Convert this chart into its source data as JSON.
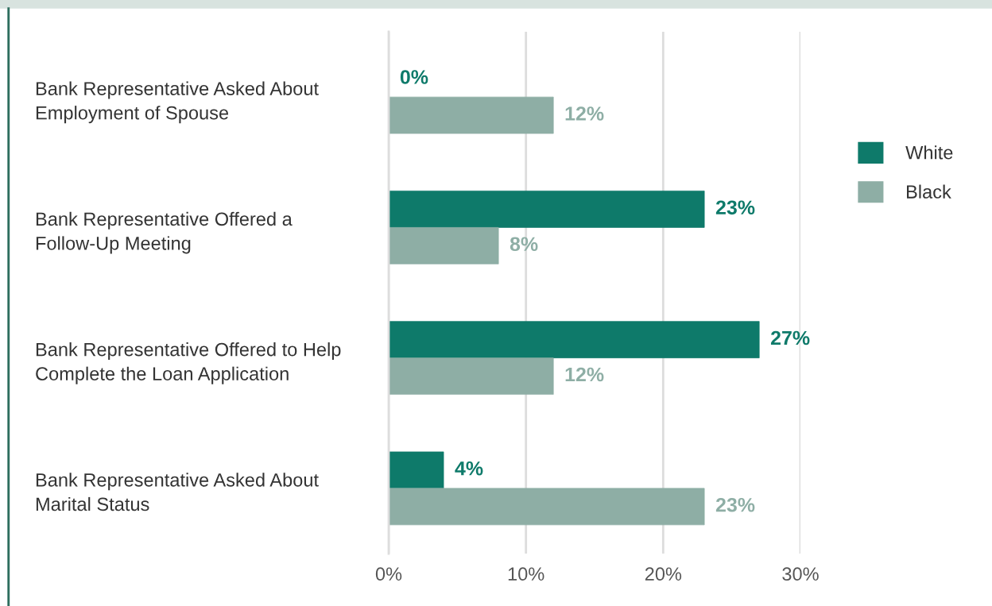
{
  "chart_data": {
    "type": "bar",
    "orientation": "horizontal",
    "categories": [
      "Bank Representative Asked About\nEmployment of Spouse",
      "Bank Representative Offered a\nFollow-Up Meeting",
      "Bank Representative Offered to Help\nComplete the Loan Application",
      "Bank Representative Asked About\nMarital Status"
    ],
    "series": [
      {
        "name": "White",
        "color": "#0e7a6a",
        "values": [
          0,
          23,
          27,
          4
        ],
        "value_labels": [
          "0%",
          "23%",
          "27%",
          "4%"
        ]
      },
      {
        "name": "Black",
        "color": "#8eaea5",
        "values": [
          12,
          8,
          12,
          23
        ],
        "value_labels": [
          "12%",
          "8%",
          "12%",
          "23%"
        ]
      }
    ],
    "xlim": [
      0,
      30
    ],
    "xticks": [
      {
        "value": 0,
        "label": "0%"
      },
      {
        "value": 10,
        "label": "10%"
      },
      {
        "value": 20,
        "label": "20%"
      },
      {
        "value": 30,
        "label": "30%"
      }
    ],
    "grid": "x",
    "legend": "right"
  }
}
